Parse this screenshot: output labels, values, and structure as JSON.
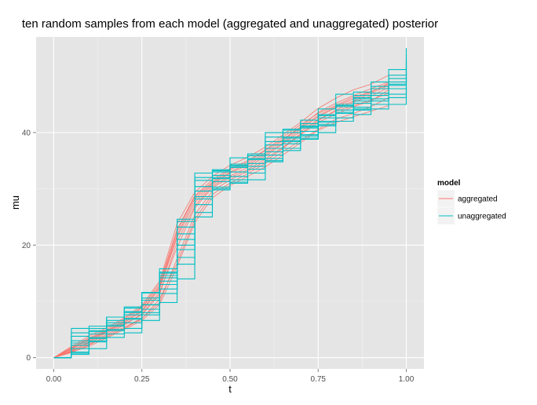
{
  "chart_data": {
    "type": "line",
    "title": "ten random samples from each model (aggregated and unaggregated) posterior",
    "xlabel": "t",
    "ylabel": "mu",
    "xlim": [
      -0.05,
      1.05
    ],
    "ylim": [
      -2,
      57
    ],
    "x_ticks": [
      0,
      0.25,
      0.5,
      0.75,
      1
    ],
    "x_tick_labels": [
      "0.00",
      "0.25",
      "0.50",
      "0.75",
      "1.00"
    ],
    "y_ticks": [
      0,
      20,
      40
    ],
    "y_tick_labels": [
      "0",
      "20",
      "40"
    ],
    "grid": true,
    "legend": {
      "title": "model",
      "position": "right",
      "entries": [
        {
          "label": "aggregated",
          "color": "#F8766D"
        },
        {
          "label": "unaggregated",
          "color": "#00BFC4"
        }
      ]
    },
    "groups": [
      {
        "name": "aggregated",
        "color": "#F8766D",
        "step": false,
        "x": [
          0,
          0.05,
          0.1,
          0.15,
          0.2,
          0.25,
          0.3,
          0.35,
          0.4,
          0.45,
          0.5,
          0.55,
          0.6,
          0.65,
          0.7,
          0.75,
          0.8,
          0.85,
          0.9,
          0.95
        ],
        "series": [
          [
            0,
            1.2,
            2.8,
            4.4,
            6.0,
            7.6,
            11.2,
            20.6,
            27.0,
            30.5,
            32.3,
            33.8,
            35.8,
            38.0,
            40.2,
            42.3,
            43.8,
            44.8,
            45.8,
            47.0
          ],
          [
            0,
            1.6,
            3.3,
            4.8,
            6.6,
            8.8,
            12.8,
            22.4,
            28.6,
            31.2,
            33.4,
            34.8,
            36.8,
            38.8,
            41.0,
            43.6,
            45.2,
            46.6,
            47.8,
            49.0
          ],
          [
            0,
            0.9,
            2.2,
            3.9,
            5.4,
            7.0,
            9.8,
            17.6,
            25.4,
            29.6,
            31.6,
            33.1,
            34.9,
            37.2,
            39.6,
            41.8,
            43.3,
            44.6,
            45.6,
            47.6
          ],
          [
            0,
            2.0,
            3.8,
            5.3,
            7.1,
            9.3,
            13.6,
            23.8,
            29.4,
            32.2,
            34.2,
            35.6,
            37.4,
            39.6,
            41.8,
            44.3,
            46.1,
            47.6,
            48.6,
            50.2
          ],
          [
            0,
            1.3,
            2.6,
            4.1,
            5.8,
            7.8,
            11.6,
            19.6,
            26.6,
            30.2,
            32.0,
            33.4,
            35.3,
            37.4,
            39.8,
            42.1,
            44.0,
            45.4,
            46.5,
            48.0
          ],
          [
            0,
            1.1,
            2.4,
            3.7,
            5.2,
            6.9,
            10.4,
            16.8,
            24.6,
            29.0,
            31.0,
            32.7,
            34.5,
            36.6,
            38.6,
            40.6,
            42.4,
            43.4,
            44.6,
            46.2
          ],
          [
            0,
            1.8,
            3.5,
            5.0,
            6.9,
            9.0,
            13.2,
            22.8,
            28.8,
            31.6,
            33.6,
            35.0,
            36.9,
            39.2,
            41.4,
            43.4,
            44.8,
            46.3,
            47.3,
            48.6
          ],
          [
            0,
            1.5,
            3.0,
            4.6,
            6.2,
            8.2,
            12.2,
            21.4,
            27.6,
            30.8,
            32.8,
            34.2,
            36.1,
            38.2,
            40.6,
            42.8,
            44.4,
            45.6,
            47.0,
            48.4
          ],
          [
            0,
            1.0,
            2.0,
            3.5,
            5.0,
            6.6,
            9.4,
            16.2,
            24.0,
            28.4,
            30.6,
            32.2,
            33.9,
            36.0,
            38.2,
            40.4,
            41.8,
            42.8,
            43.8,
            44.8
          ],
          [
            0,
            1.7,
            3.2,
            4.7,
            6.4,
            8.4,
            12.5,
            21.8,
            28.2,
            31.0,
            33.0,
            34.5,
            36.4,
            38.6,
            40.9,
            43.0,
            44.6,
            46.0,
            47.2,
            48.8
          ]
        ]
      },
      {
        "name": "unaggregated",
        "color": "#00BFC4",
        "step": true,
        "x": [
          0,
          0.05,
          0.1,
          0.15,
          0.2,
          0.25,
          0.3,
          0.35,
          0.4,
          0.45,
          0.5,
          0.55,
          0.6,
          0.65,
          0.7,
          0.75,
          0.8,
          0.85,
          0.9,
          0.95,
          1.0
        ],
        "series": [
          [
            0,
            0.6,
            4.2,
            4.8,
            6.2,
            9.4,
            15.0,
            20.0,
            29.6,
            30.3,
            31.2,
            33.5,
            35.0,
            39.0,
            39.6,
            43.2,
            43.6,
            44.5,
            45.6,
            47.8,
            49.5
          ],
          [
            0,
            5.2,
            5.6,
            7.2,
            7.6,
            11.6,
            13.6,
            24.6,
            32.8,
            33.2,
            34.2,
            34.5,
            40.0,
            40.4,
            42.2,
            42.6,
            44.6,
            45.2,
            47.8,
            48.4,
            54.0
          ],
          [
            0,
            1.0,
            2.8,
            3.6,
            4.4,
            6.6,
            9.8,
            14.0,
            27.2,
            31.3,
            32.2,
            32.8,
            36.0,
            38.6,
            40.2,
            41.4,
            42.6,
            44.0,
            45.0,
            46.2,
            48.0
          ],
          [
            0,
            2.6,
            3.0,
            7.2,
            9.0,
            11.5,
            15.8,
            22.0,
            31.5,
            32.4,
            35.5,
            35.9,
            37.8,
            39.2,
            41.6,
            42.0,
            46.8,
            47.2,
            49.0,
            49.6,
            53.0
          ],
          [
            0,
            3.8,
            4.6,
            5.8,
            8.8,
            9.4,
            14.2,
            19.2,
            28.2,
            31.8,
            33.0,
            35.9,
            36.6,
            38.4,
            39.0,
            42.0,
            43.4,
            46.0,
            46.6,
            49.0,
            51.0
          ],
          [
            0,
            0.8,
            1.6,
            4.2,
            5.2,
            7.6,
            11.4,
            17.8,
            25.0,
            29.8,
            31.0,
            31.6,
            34.8,
            37.2,
            38.8,
            41.2,
            42.0,
            43.2,
            44.2,
            45.0,
            48.0
          ],
          [
            0,
            4.4,
            5.2,
            6.2,
            8.2,
            10.2,
            15.2,
            24.2,
            30.4,
            32.0,
            34.0,
            35.2,
            38.4,
            40.0,
            40.8,
            43.0,
            44.0,
            46.2,
            47.0,
            48.6,
            52.0
          ],
          [
            0,
            2.2,
            3.4,
            5.0,
            6.8,
            8.0,
            12.2,
            16.6,
            25.8,
            30.0,
            31.6,
            34.0,
            35.4,
            36.8,
            39.4,
            40.0,
            43.4,
            44.2,
            46.0,
            46.8,
            50.0
          ],
          [
            0,
            1.6,
            4.8,
            5.6,
            7.0,
            8.6,
            13.0,
            21.0,
            28.6,
            33.4,
            34.4,
            35.4,
            37.2,
            38.0,
            41.0,
            41.8,
            45.0,
            45.6,
            47.8,
            50.2,
            55.0
          ],
          [
            0,
            3.0,
            3.6,
            6.6,
            8.0,
            10.6,
            14.6,
            23.2,
            32.0,
            33.0,
            33.8,
            36.2,
            39.2,
            40.6,
            41.2,
            44.2,
            44.8,
            46.6,
            48.2,
            51.2,
            53.0
          ]
        ]
      }
    ]
  }
}
